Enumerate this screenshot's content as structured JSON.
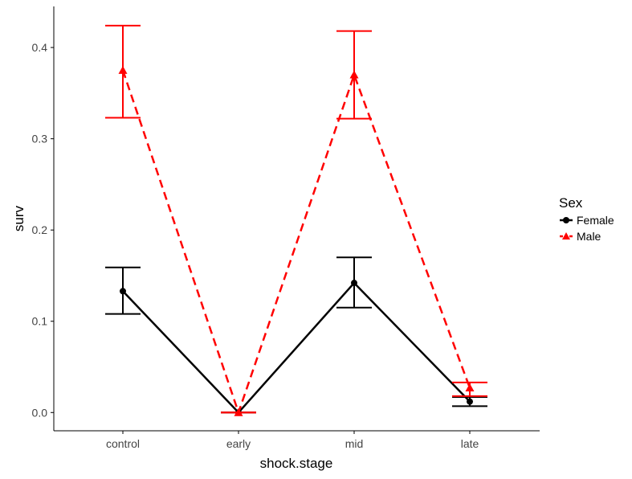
{
  "chart_data": {
    "type": "line",
    "xlabel": "shock.stage",
    "ylabel": "surv",
    "categories": [
      "control",
      "early",
      "mid",
      "late"
    ],
    "ylim": [
      -0.02,
      0.445
    ],
    "yticks": [
      0.0,
      0.1,
      0.2,
      0.3,
      0.4
    ],
    "ytick_labels": [
      "0.0",
      "0.1",
      "0.2",
      "0.3",
      "0.4"
    ],
    "grid": false,
    "legend": {
      "title": "Sex",
      "position": "right",
      "entries": [
        "Female",
        "Male"
      ]
    },
    "series": [
      {
        "name": "Female",
        "color": "#000000",
        "line_style": "solid",
        "marker": "circle",
        "values": [
          0.133,
          0.0,
          0.142,
          0.012
        ],
        "error_low": [
          0.108,
          0.0,
          0.115,
          0.007
        ],
        "error_high": [
          0.159,
          0.0,
          0.17,
          0.017
        ]
      },
      {
        "name": "Male",
        "color": "#ff0000",
        "line_style": "dashed",
        "marker": "triangle",
        "values": [
          0.375,
          0.0,
          0.37,
          0.027
        ],
        "error_low": [
          0.323,
          0.0,
          0.322,
          0.018
        ],
        "error_high": [
          0.424,
          0.0,
          0.418,
          0.033
        ]
      }
    ]
  }
}
